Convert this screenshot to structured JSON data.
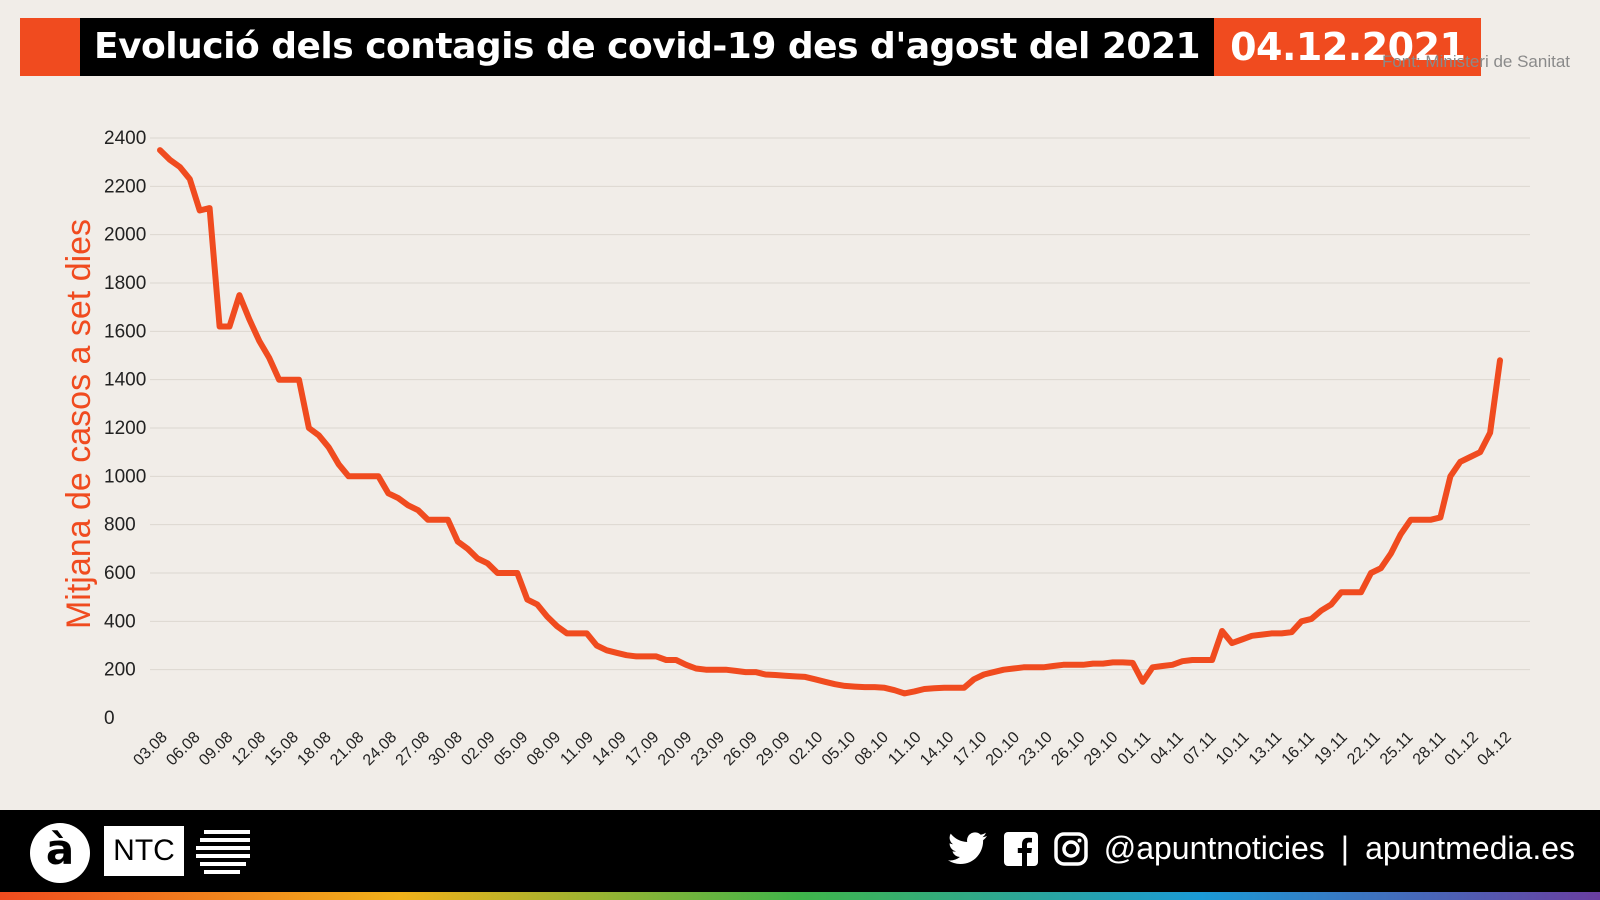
{
  "header": {
    "title": "Evolució dels contagis de covid-19 des d'agost del 2021",
    "date": "04.12.2021",
    "source": "Font: Ministeri de Sanitat"
  },
  "footer": {
    "logo_glyph": "à",
    "brand": "NTC",
    "handle": "@apuntnoticies",
    "separator": "|",
    "site": "apuntmedia.es",
    "icons": [
      "twitter-icon",
      "facebook-icon",
      "instagram-icon"
    ]
  },
  "colors": {
    "accent": "#f04b1f",
    "background": "#f1ede8",
    "grid": "#dcd7d0",
    "tick_text": "#222222"
  },
  "chart_data": {
    "type": "line",
    "title": "",
    "xlabel": "",
    "ylabel": "Mitjana de casos a set dies",
    "ylim": [
      0,
      2400
    ],
    "yticks": [
      0,
      200,
      400,
      600,
      800,
      1000,
      1200,
      1400,
      1600,
      1800,
      2000,
      2200,
      2400
    ],
    "grid": true,
    "xtick_labels": [
      "03.08",
      "06.08",
      "09.08",
      "12.08",
      "15.08",
      "18.08",
      "21.08",
      "24.08",
      "27.08",
      "30.08",
      "02.09",
      "05.09",
      "08.09",
      "11.09",
      "14.09",
      "17.09",
      "20.09",
      "23.09",
      "26.09",
      "29.09",
      "02.10",
      "05.10",
      "08.10",
      "11.10",
      "14.10",
      "17.10",
      "20.10",
      "23.10",
      "26.10",
      "29.10",
      "01.11",
      "04.11",
      "07.11",
      "10.11",
      "13.11",
      "16.11",
      "19.11",
      "22.11",
      "25.11",
      "28.11",
      "01.12",
      "04.12"
    ],
    "series": [
      {
        "color": "#f04b1f",
        "values": [
          2350,
          2310,
          2280,
          2230,
          2100,
          2110,
          1620,
          1620,
          1750,
          1650,
          1560,
          1490,
          1400,
          1400,
          1400,
          1200,
          1170,
          1120,
          1050,
          1000,
          1000,
          1000,
          1000,
          930,
          910,
          880,
          860,
          820,
          820,
          820,
          730,
          700,
          660,
          640,
          600,
          600,
          600,
          490,
          470,
          420,
          380,
          350,
          350,
          350,
          300,
          280,
          270,
          260,
          255,
          255,
          255,
          240,
          240,
          220,
          205,
          200,
          200,
          200,
          195,
          190,
          190,
          180,
          178,
          175,
          172,
          170,
          160,
          150,
          140,
          133,
          130,
          128,
          128,
          125,
          115,
          102,
          110,
          120,
          123,
          125,
          125,
          125,
          160,
          180,
          190,
          200,
          205,
          210,
          210,
          210,
          215,
          220,
          220,
          220,
          225,
          225,
          230,
          230,
          228,
          150,
          210,
          215,
          220,
          235,
          240,
          240,
          240,
          360,
          310,
          325,
          340,
          345,
          350,
          350,
          355,
          400,
          410,
          445,
          470,
          520,
          520,
          520,
          600,
          620,
          680,
          760,
          820,
          820,
          820,
          830,
          1000,
          1060,
          1080,
          1100,
          1180,
          1480
        ]
      }
    ]
  }
}
